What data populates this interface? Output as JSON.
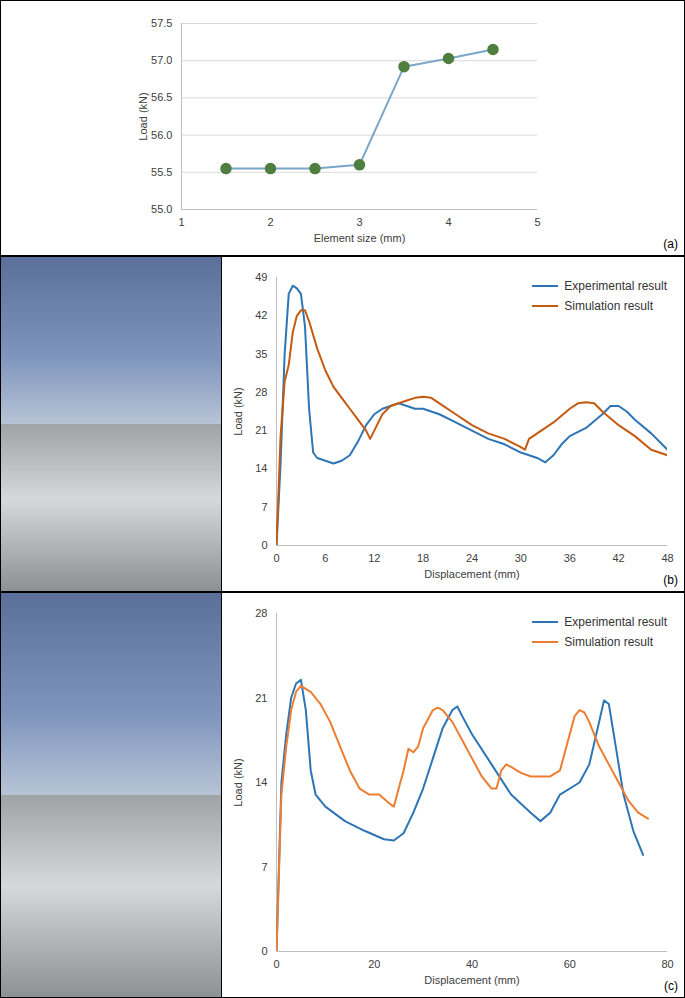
{
  "chart_data": [
    {
      "type": "line",
      "annotation": "(a)",
      "x_label": "Element size (mm)",
      "y_label": "Load (kN)",
      "x": [
        1.5,
        2,
        2.5,
        3,
        3.5,
        4,
        4.5
      ],
      "values": [
        55.55,
        55.55,
        55.55,
        55.6,
        56.92,
        57.03,
        57.15
      ],
      "color": "#7aa6c8",
      "marker": "circle",
      "line_style": "solid",
      "xlim": [
        1,
        5
      ],
      "xticks": [
        1,
        2,
        3,
        4,
        5
      ],
      "ylim": [
        55,
        57.5
      ],
      "yticks": [
        {
          "value": 55,
          "label": "55.0"
        },
        55.5,
        {
          "value": 56,
          "label": "56.0"
        },
        56.5,
        {
          "value": 57,
          "label": "57.0"
        },
        57.5
      ],
      "grid": true
    },
    {
      "type": "line",
      "annotation": "(b)",
      "x_label": "Displacement (mm)",
      "y_label": "Load (kN)",
      "series": [
        {
          "name": "Experimental result",
          "color": "#2e75b6",
          "line_style": "solid",
          "x": [
            0,
            0.5,
            1,
            1.5,
            2,
            2.5,
            3,
            3.5,
            4,
            4.5,
            5,
            6,
            7,
            8,
            9,
            10,
            11,
            12,
            13,
            14,
            15,
            16,
            17,
            18,
            20,
            22,
            24,
            26,
            28,
            30,
            32,
            33,
            34,
            35,
            36,
            38,
            40,
            41,
            42,
            43,
            44,
            46,
            48
          ],
          "values": [
            0,
            15,
            35,
            46,
            47.5,
            47,
            46,
            40,
            25,
            17,
            16,
            15.5,
            15,
            15.5,
            16.5,
            19,
            22,
            24,
            25,
            25.5,
            26,
            25.5,
            25,
            25,
            24,
            22.5,
            21,
            19.5,
            18.5,
            17,
            16,
            15.2,
            16.5,
            18.5,
            20,
            21.5,
            24,
            25.5,
            25.5,
            24.5,
            23,
            20.5,
            17.5
          ]
        },
        {
          "name": "Simulation result",
          "color": "#c55a11",
          "line_style": "solid",
          "x": [
            0,
            0.5,
            1,
            1.5,
            2,
            2.5,
            3,
            3.5,
            4,
            5,
            6,
            7,
            8,
            9,
            10,
            11,
            11.5,
            12,
            13,
            14,
            15,
            16,
            17,
            18,
            19,
            20,
            22,
            24,
            26,
            28,
            30,
            30.5,
            31,
            32,
            34,
            36,
            37,
            38,
            39,
            40,
            42,
            44,
            46,
            48
          ],
          "values": [
            0,
            20,
            30,
            33,
            39,
            42,
            43,
            43,
            41,
            36,
            32,
            29,
            27,
            25,
            23,
            21,
            19.5,
            21,
            24,
            25.5,
            26,
            26.5,
            27,
            27.2,
            27,
            26,
            24,
            22,
            20.5,
            19.5,
            18,
            17.5,
            19.5,
            20.5,
            22.5,
            25,
            26,
            26.2,
            26,
            24.5,
            22,
            20,
            17.5,
            16.5
          ]
        }
      ],
      "xlim": [
        0,
        48
      ],
      "xticks": [
        0,
        6,
        12,
        18,
        24,
        30,
        36,
        42,
        48
      ],
      "ylim": [
        0,
        49
      ],
      "yticks": [
        0,
        7,
        14,
        21,
        28,
        35,
        42,
        49
      ],
      "grid": false,
      "legend": "top-right"
    },
    {
      "type": "line",
      "annotation": "(c)",
      "x_label": "Displacement (mm)",
      "y_label": "Load (kN)",
      "series": [
        {
          "name": "Experimental result",
          "color": "#2e75b6",
          "line_style": "solid",
          "x": [
            0,
            1,
            2,
            3,
            4,
            5,
            6,
            7,
            8,
            10,
            14,
            18,
            22,
            24,
            26,
            28,
            30,
            32,
            34,
            36,
            37,
            38,
            40,
            44,
            48,
            52,
            54,
            56,
            58,
            62,
            64,
            66,
            67,
            68,
            69,
            71,
            73,
            75
          ],
          "values": [
            0,
            14,
            18,
            21,
            22.2,
            22.5,
            20,
            15,
            13,
            12,
            10.8,
            10,
            9.3,
            9.2,
            9.8,
            11.5,
            13.5,
            16,
            18.5,
            20,
            20.3,
            19.5,
            18,
            15.5,
            13,
            11.5,
            10.8,
            11.5,
            13,
            14,
            15.5,
            19,
            20.8,
            20.5,
            18,
            13,
            10,
            8
          ]
        },
        {
          "name": "Simulation result",
          "color": "#ed7d31",
          "line_style": "solid",
          "x": [
            0,
            1,
            2,
            3,
            4,
            5,
            7,
            9,
            11,
            13,
            15,
            17,
            19,
            21,
            23,
            24,
            25,
            26,
            27,
            28,
            29,
            30,
            32,
            33,
            34,
            36,
            38,
            40,
            42,
            44,
            45,
            46,
            47,
            48,
            50,
            52,
            54,
            56,
            58,
            60,
            61,
            62,
            63,
            64,
            66,
            68,
            70,
            72,
            74,
            76
          ],
          "values": [
            0,
            13,
            17,
            20,
            21.5,
            22,
            21.5,
            20.5,
            19,
            17,
            15,
            13.5,
            13,
            13,
            12.3,
            12,
            13.5,
            15,
            16.8,
            16.5,
            17,
            18.5,
            20,
            20.2,
            20,
            19,
            17.5,
            16,
            14.5,
            13.5,
            13.5,
            15,
            15.5,
            15.3,
            14.8,
            14.5,
            14.5,
            14.5,
            15,
            18,
            19.5,
            20,
            19.8,
            19,
            17,
            15.5,
            14,
            12.5,
            11.5,
            11
          ]
        }
      ],
      "xlim": [
        0,
        80
      ],
      "xticks": [
        0,
        20,
        40,
        60,
        80
      ],
      "ylim": [
        0,
        28
      ],
      "yticks": [
        0,
        7,
        14,
        21,
        28
      ],
      "grid": false,
      "legend": "top-right"
    }
  ]
}
